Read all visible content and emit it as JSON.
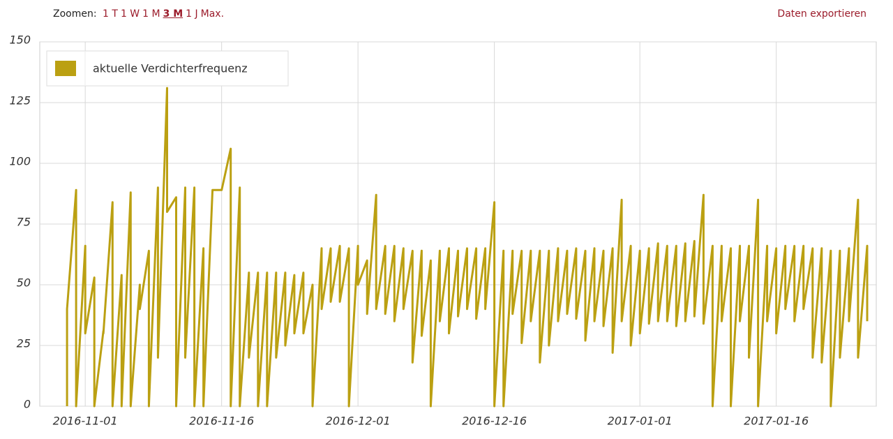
{
  "toolbar": {
    "zoom_label": "Zoomen:",
    "zoom_options": [
      "1 T",
      "1 W",
      "1 M",
      "3 M",
      "1 J",
      "Max."
    ],
    "active_zoom": 3,
    "export": "Daten exportieren"
  },
  "chart_data": {
    "type": "line",
    "x": [
      "2016-10-30",
      "2016-10-30",
      "2016-10-31",
      "2016-10-31",
      "2016-11-01",
      "2016-11-01",
      "2016-11-02",
      "2016-11-02",
      "2016-11-03",
      "2016-11-03",
      "2016-11-04",
      "2016-11-04",
      "2016-11-05",
      "2016-11-05",
      "2016-11-06",
      "2016-11-06",
      "2016-11-07",
      "2016-11-07",
      "2016-11-08",
      "2016-11-08",
      "2016-11-09",
      "2016-11-09",
      "2016-11-10",
      "2016-11-10",
      "2016-11-11",
      "2016-11-11",
      "2016-11-12",
      "2016-11-12",
      "2016-11-13",
      "2016-11-13",
      "2016-11-14",
      "2016-11-14",
      "2016-11-15",
      "2016-11-15",
      "2016-11-16",
      "2016-11-16",
      "2016-11-17",
      "2016-11-17",
      "2016-11-18",
      "2016-11-18",
      "2016-11-19",
      "2016-11-19",
      "2016-11-20",
      "2016-11-20",
      "2016-11-21",
      "2016-11-21",
      "2016-11-22",
      "2016-11-22",
      "2016-11-23",
      "2016-11-23",
      "2016-11-24",
      "2016-11-24",
      "2016-11-25",
      "2016-11-25",
      "2016-11-26",
      "2016-11-26",
      "2016-11-27",
      "2016-11-27",
      "2016-11-28",
      "2016-11-28",
      "2016-11-29",
      "2016-11-29",
      "2016-11-30",
      "2016-11-30",
      "2016-12-01",
      "2016-12-01",
      "2016-12-02",
      "2016-12-02",
      "2016-12-03",
      "2016-12-03",
      "2016-12-04",
      "2016-12-04",
      "2016-12-05",
      "2016-12-05",
      "2016-12-06",
      "2016-12-06",
      "2016-12-07",
      "2016-12-07",
      "2016-12-08",
      "2016-12-08",
      "2016-12-09",
      "2016-12-09",
      "2016-12-10",
      "2016-12-10",
      "2016-12-11",
      "2016-12-11",
      "2016-12-12",
      "2016-12-12",
      "2016-12-13",
      "2016-12-13",
      "2016-12-14",
      "2016-12-14",
      "2016-12-15",
      "2016-12-15",
      "2016-12-16",
      "2016-12-16",
      "2016-12-17",
      "2016-12-17",
      "2016-12-18",
      "2016-12-18",
      "2016-12-19",
      "2016-12-19",
      "2016-12-20",
      "2016-12-20",
      "2016-12-21",
      "2016-12-21",
      "2016-12-22",
      "2016-12-22",
      "2016-12-23",
      "2016-12-23",
      "2016-12-24",
      "2016-12-24",
      "2016-12-25",
      "2016-12-25",
      "2016-12-26",
      "2016-12-26",
      "2016-12-27",
      "2016-12-27",
      "2016-12-28",
      "2016-12-28",
      "2016-12-29",
      "2016-12-29",
      "2016-12-30",
      "2016-12-30",
      "2016-12-31",
      "2016-12-31",
      "2017-01-01",
      "2017-01-01",
      "2017-01-02",
      "2017-01-02",
      "2017-01-03",
      "2017-01-03",
      "2017-01-04",
      "2017-01-04",
      "2017-01-05",
      "2017-01-05",
      "2017-01-06",
      "2017-01-06",
      "2017-01-07",
      "2017-01-07",
      "2017-01-08",
      "2017-01-08",
      "2017-01-09",
      "2017-01-09",
      "2017-01-10",
      "2017-01-10",
      "2017-01-11",
      "2017-01-11",
      "2017-01-12",
      "2017-01-12",
      "2017-01-13",
      "2017-01-13",
      "2017-01-14",
      "2017-01-14",
      "2017-01-15",
      "2017-01-15",
      "2017-01-16",
      "2017-01-16",
      "2017-01-17",
      "2017-01-17",
      "2017-01-18",
      "2017-01-18",
      "2017-01-19",
      "2017-01-19",
      "2017-01-20",
      "2017-01-20",
      "2017-01-21",
      "2017-01-21",
      "2017-01-22",
      "2017-01-22",
      "2017-01-23",
      "2017-01-23",
      "2017-01-24",
      "2017-01-24",
      "2017-01-25",
      "2017-01-25",
      "2017-01-26",
      "2017-01-26"
    ],
    "series": [
      {
        "name": "aktuelle Verdichterfrequenz",
        "color": "#bba012",
        "values": [
          0,
          40,
          89,
          0,
          66,
          30,
          53,
          0,
          31,
          30,
          84,
          0,
          54,
          0,
          88,
          0,
          50,
          40,
          64,
          0,
          90,
          20,
          131,
          80,
          86,
          0,
          90,
          20,
          90,
          0,
          65,
          0,
          89,
          89,
          89,
          89,
          106,
          0,
          90,
          0,
          55,
          20,
          55,
          0,
          55,
          0,
          55,
          20,
          55,
          25,
          54,
          30,
          55,
          30,
          50,
          0,
          65,
          40,
          65,
          43,
          66,
          43,
          65,
          0,
          66,
          50,
          60,
          38,
          87,
          40,
          66,
          38,
          66,
          35,
          65,
          40,
          64,
          18,
          64,
          29,
          60,
          0,
          64,
          35,
          65,
          30,
          64,
          37,
          65,
          40,
          65,
          36,
          65,
          40,
          84,
          0,
          64,
          0,
          64,
          38,
          64,
          26,
          64,
          35,
          64,
          18,
          64,
          25,
          65,
          35,
          64,
          38,
          65,
          36,
          64,
          27,
          65,
          35,
          64,
          33,
          65,
          22,
          85,
          35,
          66,
          25,
          64,
          30,
          65,
          34,
          67,
          35,
          66,
          35,
          66,
          33,
          67,
          35,
          68,
          37,
          87,
          34,
          66,
          0,
          66,
          35,
          65,
          0,
          66,
          35,
          66,
          20,
          85,
          0,
          66,
          35,
          65,
          30,
          66,
          40,
          66,
          35,
          66,
          40,
          65,
          20,
          65,
          18,
          64,
          0,
          64,
          20,
          65,
          35,
          85,
          20,
          66,
          35
        ]
      }
    ],
    "xlim": [
      "2016-10-27",
      "2017-01-27"
    ],
    "xticks": [
      "2016-11-01",
      "2016-11-16",
      "2016-12-01",
      "2016-12-16",
      "2017-01-01",
      "2017-01-16"
    ],
    "ylim": [
      0,
      150
    ],
    "yticks": [
      0,
      25,
      50,
      75,
      100,
      125,
      150
    ],
    "grid": true,
    "legend": "top-left"
  }
}
